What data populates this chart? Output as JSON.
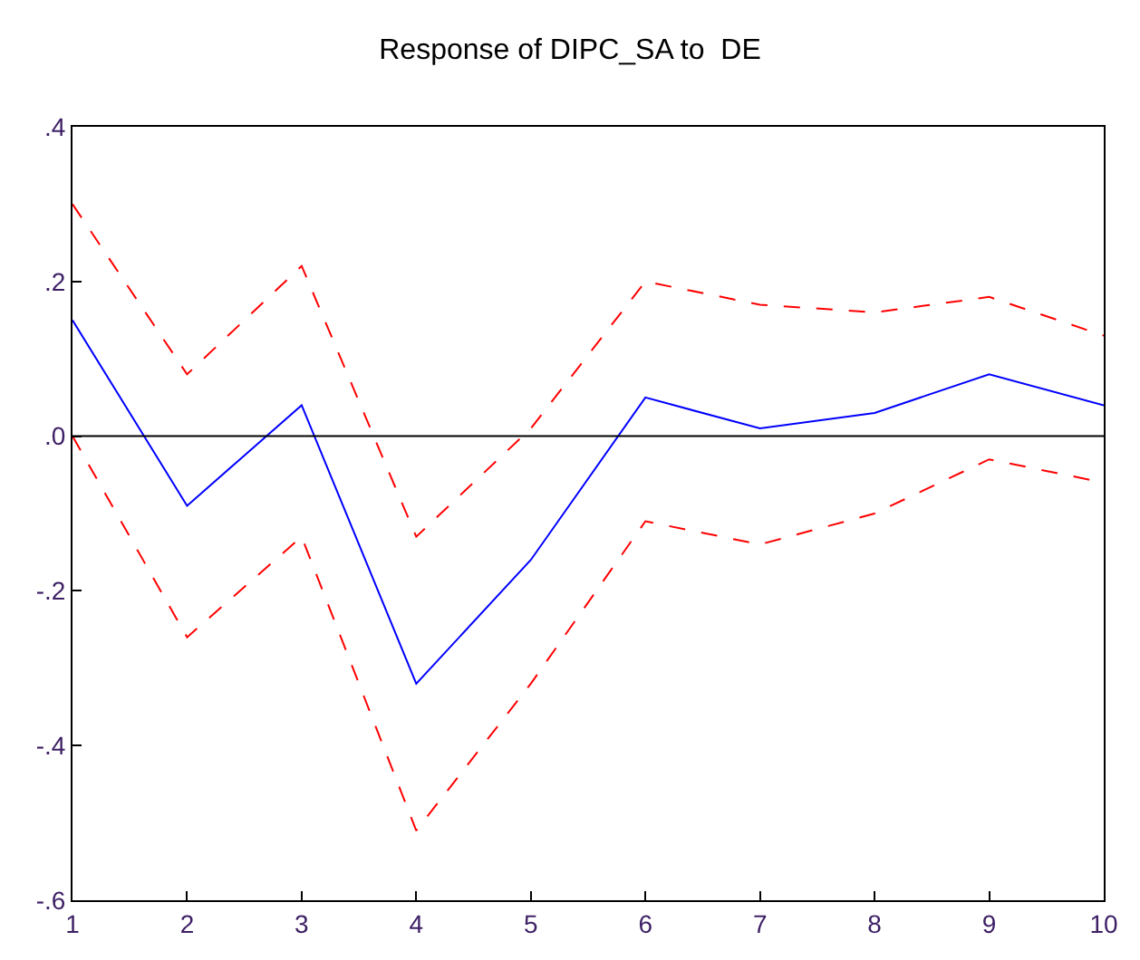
{
  "chart_data": {
    "type": "line",
    "title": "Response of DIPC_SA to  DE",
    "x": [
      1,
      2,
      3,
      4,
      5,
      6,
      7,
      8,
      9,
      10
    ],
    "series": [
      {
        "color": "#0000ff",
        "line_style": "solid",
        "values": [
          0.15,
          -0.09,
          0.04,
          -0.32,
          -0.16,
          0.05,
          0.01,
          0.03,
          0.08,
          0.04
        ]
      },
      {
        "color": "#ff0000",
        "line_style": "dashed",
        "values": [
          0.3,
          0.08,
          0.22,
          -0.13,
          0.01,
          0.2,
          0.17,
          0.16,
          0.18,
          0.13
        ]
      },
      {
        "color": "#ff0000",
        "line_style": "dashed",
        "values": [
          0.0,
          -0.26,
          -0.13,
          -0.51,
          -0.32,
          -0.11,
          -0.14,
          -0.1,
          -0.03,
          -0.06
        ]
      }
    ],
    "xlim": [
      1,
      10
    ],
    "xticks": [
      1,
      2,
      3,
      4,
      5,
      6,
      7,
      8,
      9,
      10
    ],
    "ylim": [
      -0.6,
      0.4
    ],
    "yticks": [
      {
        "value": 0.4,
        "label": ".4"
      },
      {
        "value": 0.2,
        "label": ".2"
      },
      {
        "value": 0,
        "label": ".0"
      },
      {
        "value": -0.2,
        "label": "-.2"
      },
      {
        "value": -0.4,
        "label": "-.4"
      },
      {
        "value": -0.6,
        "label": "-.6"
      }
    ],
    "ref_lines": [
      {
        "axis": "y",
        "value": 0,
        "color": "#000000"
      }
    ],
    "marker": "none"
  }
}
